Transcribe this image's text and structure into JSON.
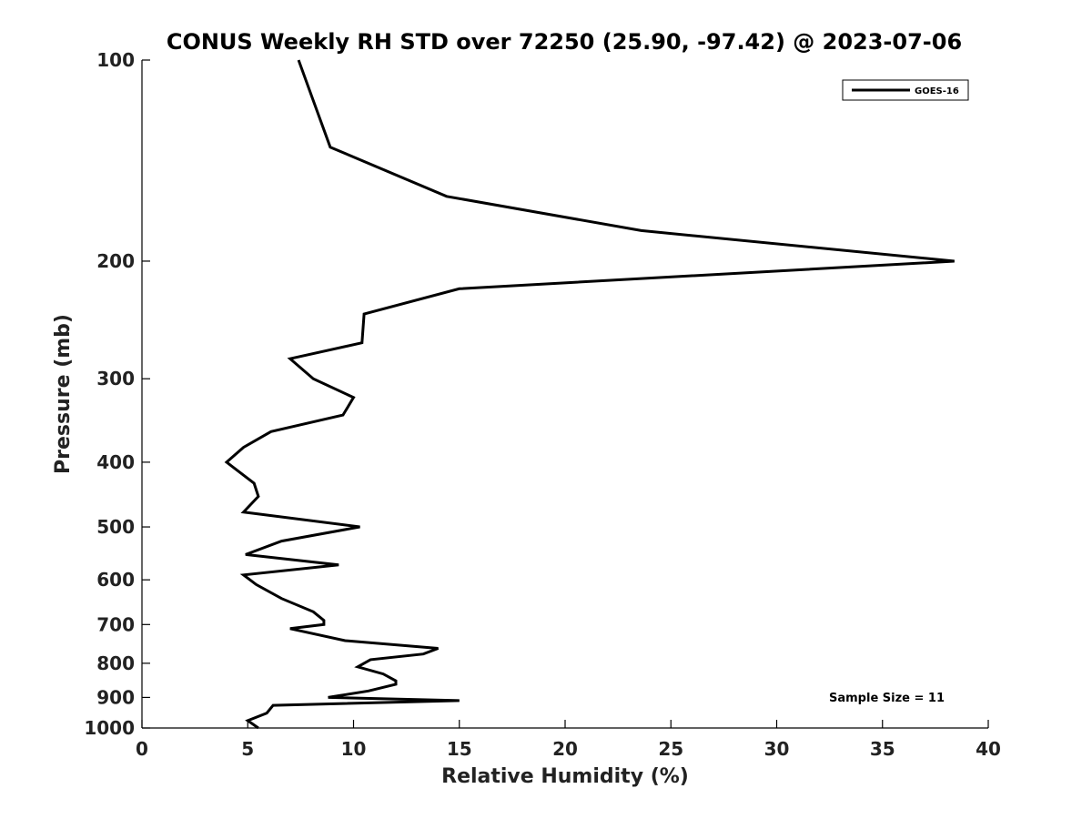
{
  "chart_data": {
    "type": "line",
    "title": "CONUS Weekly RH STD over 72250 (25.90, -97.42) @ 2023-07-06",
    "xlabel": "Relative Humidity (%)",
    "ylabel": "Pressure (mb)",
    "xlim": [
      0,
      40
    ],
    "ylim": [
      1000,
      100
    ],
    "yscale": "log",
    "y_reversed": true,
    "grid": false,
    "legend_position": "top-right",
    "x_ticks": [
      "0",
      "5",
      "10",
      "15",
      "20",
      "25",
      "30",
      "35",
      "40"
    ],
    "y_ticks": [
      "100",
      "200",
      "300",
      "400",
      "500",
      "600",
      "700",
      "800",
      "900",
      "1000"
    ],
    "annotation": "Sample Size = 11",
    "series": [
      {
        "name": "GOES-16",
        "color": "#000000",
        "points": [
          [
            7.4,
            100
          ],
          [
            8.1,
            115
          ],
          [
            8.9,
            135
          ],
          [
            14.4,
            160
          ],
          [
            23.6,
            180
          ],
          [
            38.4,
            200
          ],
          [
            15.0,
            220
          ],
          [
            10.5,
            240
          ],
          [
            10.4,
            265
          ],
          [
            7.0,
            280
          ],
          [
            8.1,
            300
          ],
          [
            10.0,
            320
          ],
          [
            9.5,
            340
          ],
          [
            6.1,
            360
          ],
          [
            4.8,
            380
          ],
          [
            4.0,
            400
          ],
          [
            5.3,
            430
          ],
          [
            5.5,
            450
          ],
          [
            4.8,
            475
          ],
          [
            10.3,
            500
          ],
          [
            6.6,
            525
          ],
          [
            4.9,
            550
          ],
          [
            9.3,
            570
          ],
          [
            4.8,
            590
          ],
          [
            5.4,
            610
          ],
          [
            6.6,
            640
          ],
          [
            8.1,
            670
          ],
          [
            8.6,
            690
          ],
          [
            8.6,
            700
          ],
          [
            7.0,
            710
          ],
          [
            9.6,
            740
          ],
          [
            14.0,
            760
          ],
          [
            13.3,
            775
          ],
          [
            10.8,
            790
          ],
          [
            10.2,
            810
          ],
          [
            11.4,
            830
          ],
          [
            12.0,
            850
          ],
          [
            12.0,
            860
          ],
          [
            10.7,
            880
          ],
          [
            8.8,
            900
          ],
          [
            15.0,
            910
          ],
          [
            6.2,
            925
          ],
          [
            5.9,
            950
          ],
          [
            5.0,
            975
          ],
          [
            5.5,
            1000
          ]
        ]
      }
    ]
  }
}
